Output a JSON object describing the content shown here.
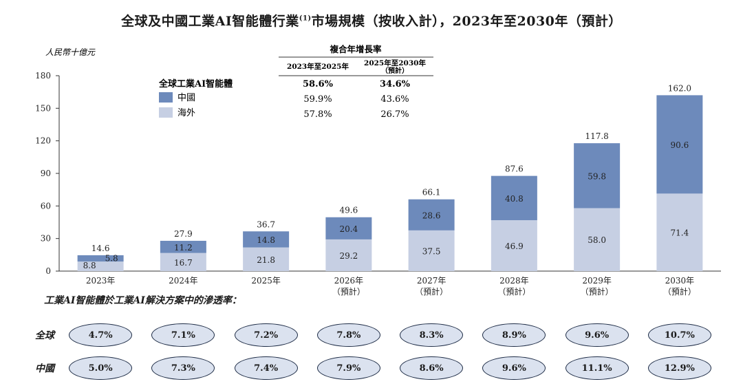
{
  "title_main": "全球及中國工業AI智能體行業",
  "title_sup": "(1)",
  "title_rest": "市場規模（按收入計），2023年至2030年（預計）",
  "unit_label": "人民幣十億元",
  "legend": {
    "title": "全球工業AI智能體",
    "items": [
      {
        "label": "中國",
        "color": "#6d8abb"
      },
      {
        "label": "海外",
        "color": "#c6cfe3"
      }
    ]
  },
  "cagr_table": {
    "header": "複合年增長率",
    "columns": [
      "2023年至2025年",
      "2025年至2030年",
      "（預計）"
    ],
    "rows": [
      [
        "58.6%",
        "34.6%"
      ],
      [
        "59.9%",
        "43.6%"
      ],
      [
        "57.8%",
        "26.7%"
      ]
    ]
  },
  "chart_data": {
    "type": "bar",
    "stacked": true,
    "categories": [
      "2023年",
      "2024年",
      "2025年",
      "2026年",
      "2027年",
      "2028年",
      "2029年",
      "2030年"
    ],
    "category_sublabels": [
      "",
      "",
      "",
      "（預計）",
      "（預計）",
      "（預計）",
      "（預計）",
      "（預計）"
    ],
    "series": [
      {
        "name": "海外",
        "values": [
          8.8,
          16.7,
          21.8,
          29.2,
          37.5,
          46.9,
          58.0,
          71.4
        ],
        "color": "#c6cfe3"
      },
      {
        "name": "中國",
        "values": [
          5.8,
          11.2,
          14.8,
          20.4,
          28.6,
          40.8,
          59.8,
          90.6
        ],
        "color": "#6d8abb"
      }
    ],
    "totals": [
      14.6,
      27.9,
      36.7,
      49.6,
      66.1,
      87.6,
      117.8,
      162.0
    ],
    "ylim": [
      0,
      180
    ],
    "yticks": [
      0,
      30,
      60,
      90,
      120,
      150,
      180
    ],
    "grid": false
  },
  "penetration": {
    "title": "工業AI智能體於工業AI解決方案中的滲透率：",
    "rows": [
      {
        "label": "全球",
        "values": [
          "4.7%",
          "7.1%",
          "7.2%",
          "7.8%",
          "8.3%",
          "8.9%",
          "9.6%",
          "10.7%"
        ]
      },
      {
        "label": "中國",
        "values": [
          "5.0%",
          "7.3%",
          "7.4%",
          "7.9%",
          "8.6%",
          "9.6%",
          "11.1%",
          "12.9%"
        ]
      }
    ]
  }
}
